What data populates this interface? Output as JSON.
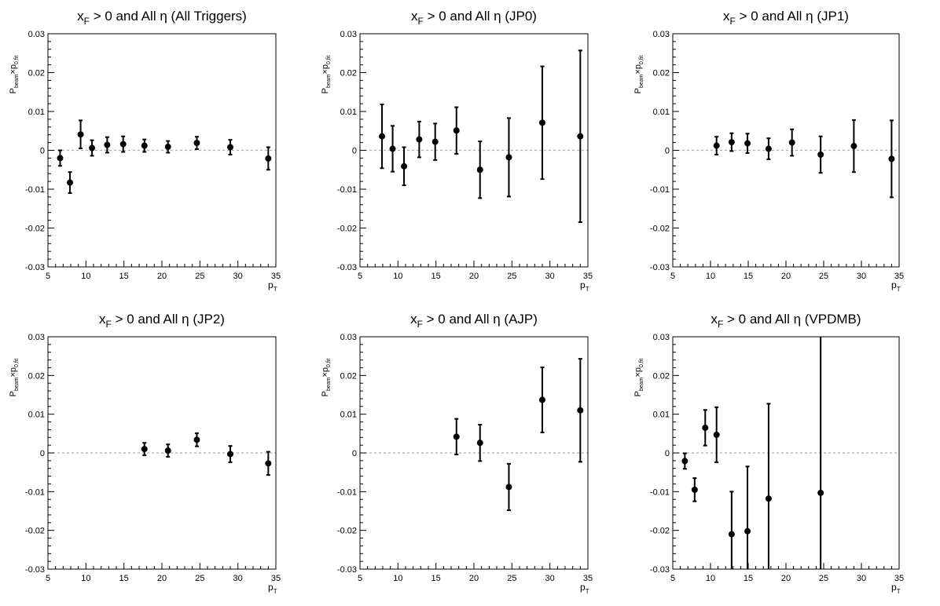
{
  "chart_data": [
    {
      "type": "scatter",
      "title": "x_F > 0 and All η (All Triggers)",
      "title_parts": {
        "x": "x",
        "sub": "F",
        "rest": " > 0 and All η (All Triggers)"
      },
      "xlabel": "p_T",
      "ylabel": "P_beam×p_0,fit",
      "xlim": [
        5,
        35
      ],
      "ylim": [
        -0.03,
        0.03
      ],
      "xticks": [
        "5",
        "10",
        "15",
        "20",
        "25",
        "30",
        "35"
      ],
      "yticks": [
        "-0.03",
        "-0.02",
        "-0.01",
        "0",
        "0.01",
        "0.02",
        "0.03"
      ],
      "reference_line": 0,
      "points": [
        {
          "x": 6.6,
          "y": -0.002,
          "err": 0.002
        },
        {
          "x": 7.9,
          "y": -0.0083,
          "err": 0.0027
        },
        {
          "x": 9.3,
          "y": 0.0041,
          "err": 0.0036
        },
        {
          "x": 10.8,
          "y": 0.0006,
          "err": 0.002
        },
        {
          "x": 12.8,
          "y": 0.0014,
          "err": 0.002
        },
        {
          "x": 14.9,
          "y": 0.0016,
          "err": 0.002
        },
        {
          "x": 17.7,
          "y": 0.0012,
          "err": 0.0016
        },
        {
          "x": 20.8,
          "y": 0.0009,
          "err": 0.0015
        },
        {
          "x": 24.6,
          "y": 0.0019,
          "err": 0.0016
        },
        {
          "x": 29.0,
          "y": 0.0008,
          "err": 0.0019
        },
        {
          "x": 34.0,
          "y": -0.0021,
          "err": 0.0029
        }
      ]
    },
    {
      "type": "scatter",
      "title": "x_F > 0 and All η (JP0)",
      "title_parts": {
        "x": "x",
        "sub": "F",
        "rest": " > 0 and All η (JP0)"
      },
      "xlabel": "p_T",
      "ylabel": "P_beam×p_0,fit",
      "xlim": [
        5,
        35
      ],
      "ylim": [
        -0.03,
        0.03
      ],
      "xticks": [
        "5",
        "10",
        "15",
        "20",
        "25",
        "30",
        "35"
      ],
      "yticks": [
        "-0.03",
        "-0.02",
        "-0.01",
        "0",
        "0.01",
        "0.02",
        "0.03"
      ],
      "reference_line": 0,
      "points": [
        {
          "x": 7.9,
          "y": 0.0036,
          "err": 0.0082
        },
        {
          "x": 9.3,
          "y": 0.0004,
          "err": 0.0059
        },
        {
          "x": 10.8,
          "y": -0.0041,
          "err": 0.0049
        },
        {
          "x": 12.8,
          "y": 0.0028,
          "err": 0.0046
        },
        {
          "x": 14.9,
          "y": 0.0022,
          "err": 0.0047
        },
        {
          "x": 17.7,
          "y": 0.0051,
          "err": 0.006
        },
        {
          "x": 20.8,
          "y": -0.005,
          "err": 0.0073
        },
        {
          "x": 24.6,
          "y": -0.0018,
          "err": 0.0101
        },
        {
          "x": 29.0,
          "y": 0.0071,
          "err": 0.0145
        },
        {
          "x": 34.0,
          "y": 0.0036,
          "err": 0.0221
        }
      ]
    },
    {
      "type": "scatter",
      "title": "x_F > 0 and All η (JP1)",
      "title_parts": {
        "x": "x",
        "sub": "F",
        "rest": " > 0 and All η (JP1)"
      },
      "xlabel": "p_T",
      "ylabel": "P_beam×p_0,fit",
      "xlim": [
        5,
        35
      ],
      "ylim": [
        -0.03,
        0.03
      ],
      "xticks": [
        "5",
        "10",
        "15",
        "20",
        "25",
        "30",
        "35"
      ],
      "yticks": [
        "-0.03",
        "-0.02",
        "-0.01",
        "0",
        "0.01",
        "0.02",
        "0.03"
      ],
      "reference_line": 0,
      "points": [
        {
          "x": 10.8,
          "y": 0.0012,
          "err": 0.0023
        },
        {
          "x": 12.8,
          "y": 0.0021,
          "err": 0.0023
        },
        {
          "x": 14.9,
          "y": 0.0018,
          "err": 0.0025
        },
        {
          "x": 17.7,
          "y": 0.0004,
          "err": 0.0027
        },
        {
          "x": 20.8,
          "y": 0.002,
          "err": 0.0034
        },
        {
          "x": 24.6,
          "y": -0.0011,
          "err": 0.0047
        },
        {
          "x": 29.0,
          "y": 0.0011,
          "err": 0.0067
        },
        {
          "x": 34.0,
          "y": -0.0022,
          "err": 0.0099
        }
      ]
    },
    {
      "type": "scatter",
      "title": "x_F > 0 and All η (JP2)",
      "title_parts": {
        "x": "x",
        "sub": "F",
        "rest": " > 0 and All η (JP2)"
      },
      "xlabel": "p_T",
      "ylabel": "P_beam×p_0,fit",
      "xlim": [
        5,
        35
      ],
      "ylim": [
        -0.03,
        0.03
      ],
      "xticks": [
        "5",
        "10",
        "15",
        "20",
        "25",
        "30",
        "35"
      ],
      "yticks": [
        "-0.03",
        "-0.02",
        "-0.01",
        "0",
        "0.01",
        "0.02",
        "0.03"
      ],
      "reference_line": 0,
      "points": [
        {
          "x": 17.7,
          "y": 0.001,
          "err": 0.0016
        },
        {
          "x": 20.8,
          "y": 0.0006,
          "err": 0.0016
        },
        {
          "x": 24.6,
          "y": 0.0034,
          "err": 0.0017
        },
        {
          "x": 29.0,
          "y": -0.0003,
          "err": 0.0021
        },
        {
          "x": 34.0,
          "y": -0.0027,
          "err": 0.003
        }
      ]
    },
    {
      "type": "scatter",
      "title": "x_F > 0 and All η (AJP)",
      "title_parts": {
        "x": "x",
        "sub": "F",
        "rest": " > 0 and All η (AJP)"
      },
      "xlabel": "p_T",
      "ylabel": "P_beam×p_0,fit",
      "xlim": [
        5,
        35
      ],
      "ylim": [
        -0.03,
        0.03
      ],
      "xticks": [
        "5",
        "10",
        "15",
        "20",
        "25",
        "30",
        "35"
      ],
      "yticks": [
        "-0.03",
        "-0.02",
        "-0.01",
        "0",
        "0.01",
        "0.02",
        "0.03"
      ],
      "reference_line": 0,
      "points": [
        {
          "x": 17.7,
          "y": 0.0042,
          "err": 0.0046
        },
        {
          "x": 20.8,
          "y": 0.0026,
          "err": 0.0047
        },
        {
          "x": 24.6,
          "y": -0.0088,
          "err": 0.006
        },
        {
          "x": 29.0,
          "y": 0.0137,
          "err": 0.0084
        },
        {
          "x": 34.0,
          "y": 0.011,
          "err": 0.0133
        }
      ]
    },
    {
      "type": "scatter",
      "title": "x_F > 0 and All η (VPDMB)",
      "title_parts": {
        "x": "x",
        "sub": "F",
        "rest": " > 0 and All η (VPDMB)"
      },
      "xlabel": "p_T",
      "ylabel": "P_beam×p_0,fit",
      "xlim": [
        5,
        35
      ],
      "ylim": [
        -0.03,
        0.03
      ],
      "xticks": [
        "5",
        "10",
        "15",
        "20",
        "25",
        "30",
        "35"
      ],
      "yticks": [
        "-0.03",
        "-0.02",
        "-0.01",
        "0",
        "0.01",
        "0.02",
        "0.03"
      ],
      "reference_line": 0,
      "points": [
        {
          "x": 6.6,
          "y": -0.0021,
          "err": 0.002
        },
        {
          "x": 7.9,
          "y": -0.0095,
          "err": 0.003
        },
        {
          "x": 9.3,
          "y": 0.0065,
          "err": 0.0046
        },
        {
          "x": 10.8,
          "y": 0.0047,
          "err": 0.0071
        },
        {
          "x": 12.8,
          "y": -0.021,
          "err": 0.011
        },
        {
          "x": 14.9,
          "y": -0.0202,
          "err": 0.0167
        },
        {
          "x": 17.7,
          "y": -0.0118,
          "err": 0.0245
        },
        {
          "x": 24.6,
          "y": -0.0103,
          "err": 0.041
        }
      ]
    }
  ]
}
